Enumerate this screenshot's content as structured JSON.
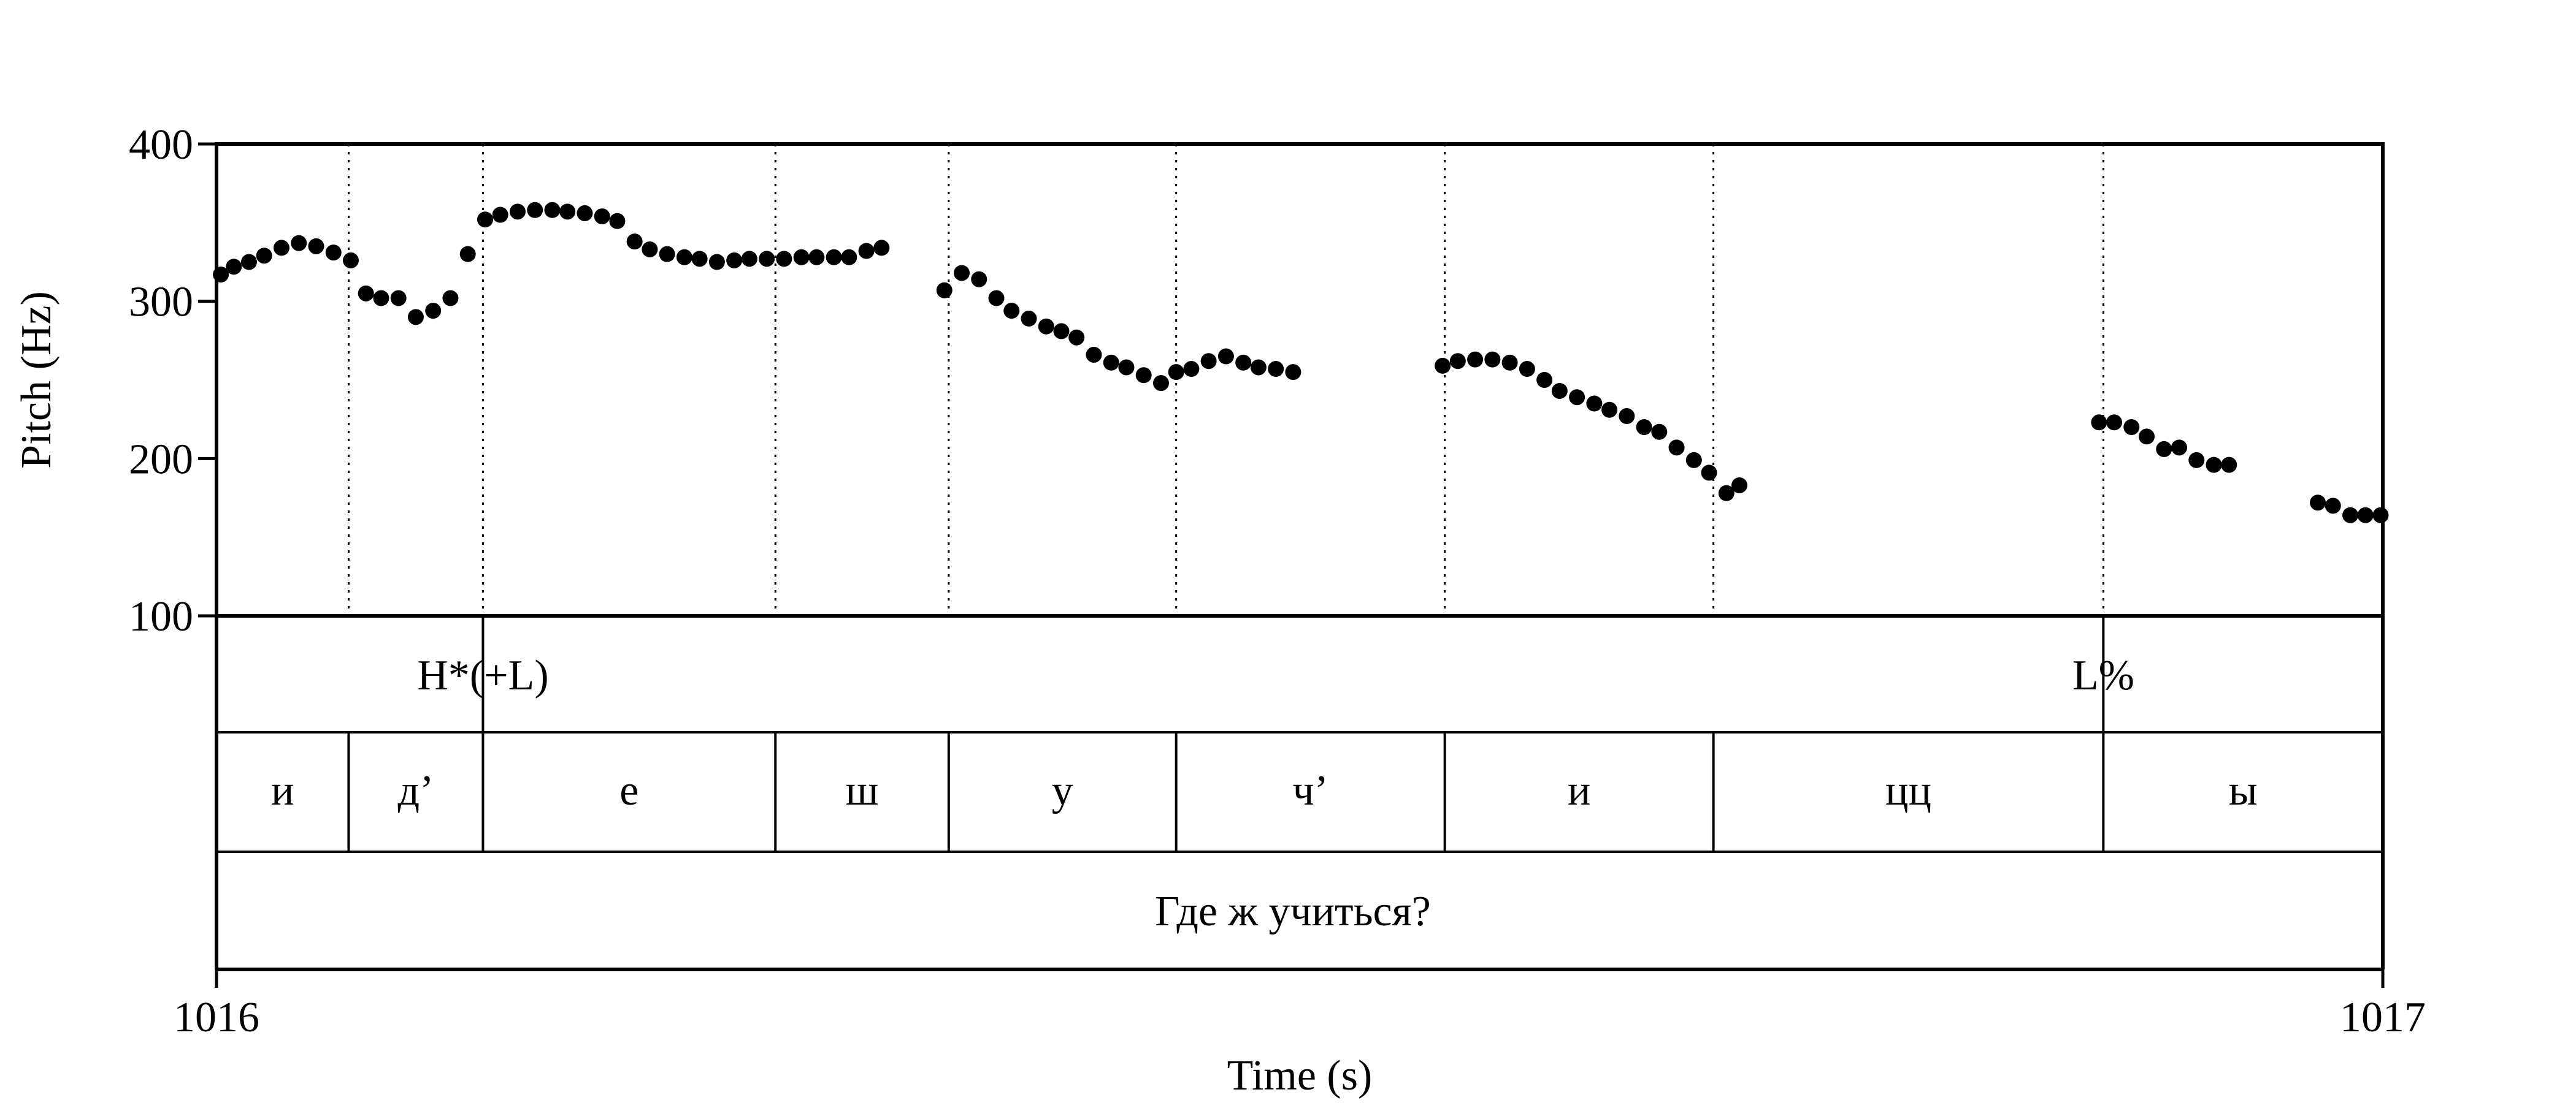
{
  "chart_data": {
    "type": "scatter",
    "title": "",
    "xlabel": "Time (s)",
    "ylabel": "Pitch (Hz)",
    "xlim": [
      1016,
      1017
    ],
    "ylim": [
      100,
      400
    ],
    "xticks": [
      "1016",
      "1017"
    ],
    "yticks": [
      "100",
      "200",
      "300",
      "400"
    ],
    "boundaries": [
      1016.061,
      1016.123,
      1016.258,
      1016.338,
      1016.443,
      1016.567,
      1016.691,
      1016.871
    ],
    "tones": [
      {
        "label": "H*(+L)",
        "time": 1016.123
      },
      {
        "label": "L%",
        "time": 1016.871
      }
    ],
    "segments": [
      {
        "label": "и",
        "start": 1016.0,
        "end": 1016.061
      },
      {
        "label": "д’",
        "start": 1016.061,
        "end": 1016.123
      },
      {
        "label": "е",
        "start": 1016.123,
        "end": 1016.258
      },
      {
        "label": "ш",
        "start": 1016.258,
        "end": 1016.338
      },
      {
        "label": "у",
        "start": 1016.338,
        "end": 1016.443
      },
      {
        "label": "ч’",
        "start": 1016.443,
        "end": 1016.567
      },
      {
        "label": "и",
        "start": 1016.567,
        "end": 1016.691
      },
      {
        "label": "цц",
        "start": 1016.691,
        "end": 1016.871
      },
      {
        "label": "ы",
        "start": 1016.871,
        "end": 1017.0
      }
    ],
    "phrase": "Где ж учиться?",
    "points": [
      [
        1016.002,
        317
      ],
      [
        1016.008,
        322
      ],
      [
        1016.015,
        325
      ],
      [
        1016.022,
        329
      ],
      [
        1016.03,
        334
      ],
      [
        1016.038,
        337
      ],
      [
        1016.046,
        335
      ],
      [
        1016.054,
        331
      ],
      [
        1016.062,
        326
      ],
      [
        1016.069,
        305
      ],
      [
        1016.076,
        302
      ],
      [
        1016.084,
        302
      ],
      [
        1016.092,
        290
      ],
      [
        1016.1,
        294
      ],
      [
        1016.108,
        302
      ],
      [
        1016.116,
        330
      ],
      [
        1016.124,
        352
      ],
      [
        1016.131,
        355
      ],
      [
        1016.139,
        357
      ],
      [
        1016.147,
        358
      ],
      [
        1016.155,
        358
      ],
      [
        1016.162,
        357
      ],
      [
        1016.17,
        356
      ],
      [
        1016.178,
        354
      ],
      [
        1016.185,
        351
      ],
      [
        1016.193,
        338
      ],
      [
        1016.2,
        333
      ],
      [
        1016.208,
        330
      ],
      [
        1016.216,
        328
      ],
      [
        1016.223,
        327
      ],
      [
        1016.231,
        325
      ],
      [
        1016.239,
        326
      ],
      [
        1016.246,
        327
      ],
      [
        1016.254,
        327
      ],
      [
        1016.262,
        327
      ],
      [
        1016.27,
        328
      ],
      [
        1016.277,
        328
      ],
      [
        1016.285,
        328
      ],
      [
        1016.292,
        328
      ],
      [
        1016.3,
        332
      ],
      [
        1016.307,
        334
      ],
      [
        1016.336,
        307
      ],
      [
        1016.344,
        318
      ],
      [
        1016.352,
        314
      ],
      [
        1016.36,
        302
      ],
      [
        1016.367,
        294
      ],
      [
        1016.375,
        289
      ],
      [
        1016.383,
        284
      ],
      [
        1016.39,
        281
      ],
      [
        1016.397,
        277
      ],
      [
        1016.405,
        266
      ],
      [
        1016.413,
        261
      ],
      [
        1016.42,
        258
      ],
      [
        1016.428,
        253
      ],
      [
        1016.436,
        248
      ],
      [
        1016.443,
        255
      ],
      [
        1016.45,
        257
      ],
      [
        1016.458,
        262
      ],
      [
        1016.466,
        265
      ],
      [
        1016.474,
        261
      ],
      [
        1016.481,
        258
      ],
      [
        1016.489,
        257
      ],
      [
        1016.497,
        255
      ],
      [
        1016.566,
        259
      ],
      [
        1016.573,
        262
      ],
      [
        1016.581,
        263
      ],
      [
        1016.589,
        263
      ],
      [
        1016.597,
        261
      ],
      [
        1016.605,
        257
      ],
      [
        1016.613,
        250
      ],
      [
        1016.62,
        243
      ],
      [
        1016.628,
        239
      ],
      [
        1016.636,
        235
      ],
      [
        1016.643,
        231
      ],
      [
        1016.651,
        227
      ],
      [
        1016.659,
        220
      ],
      [
        1016.666,
        217
      ],
      [
        1016.674,
        207
      ],
      [
        1016.682,
        199
      ],
      [
        1016.689,
        191
      ],
      [
        1016.697,
        178
      ],
      [
        1016.703,
        183
      ],
      [
        1016.869,
        223
      ],
      [
        1016.876,
        223
      ],
      [
        1016.884,
        220
      ],
      [
        1016.891,
        214
      ],
      [
        1016.899,
        206
      ],
      [
        1016.906,
        207
      ],
      [
        1016.914,
        199
      ],
      [
        1016.922,
        196
      ],
      [
        1016.929,
        196
      ],
      [
        1016.97,
        172
      ],
      [
        1016.977,
        170
      ],
      [
        1016.985,
        164
      ],
      [
        1016.992,
        164
      ],
      [
        1016.999,
        164
      ]
    ]
  }
}
